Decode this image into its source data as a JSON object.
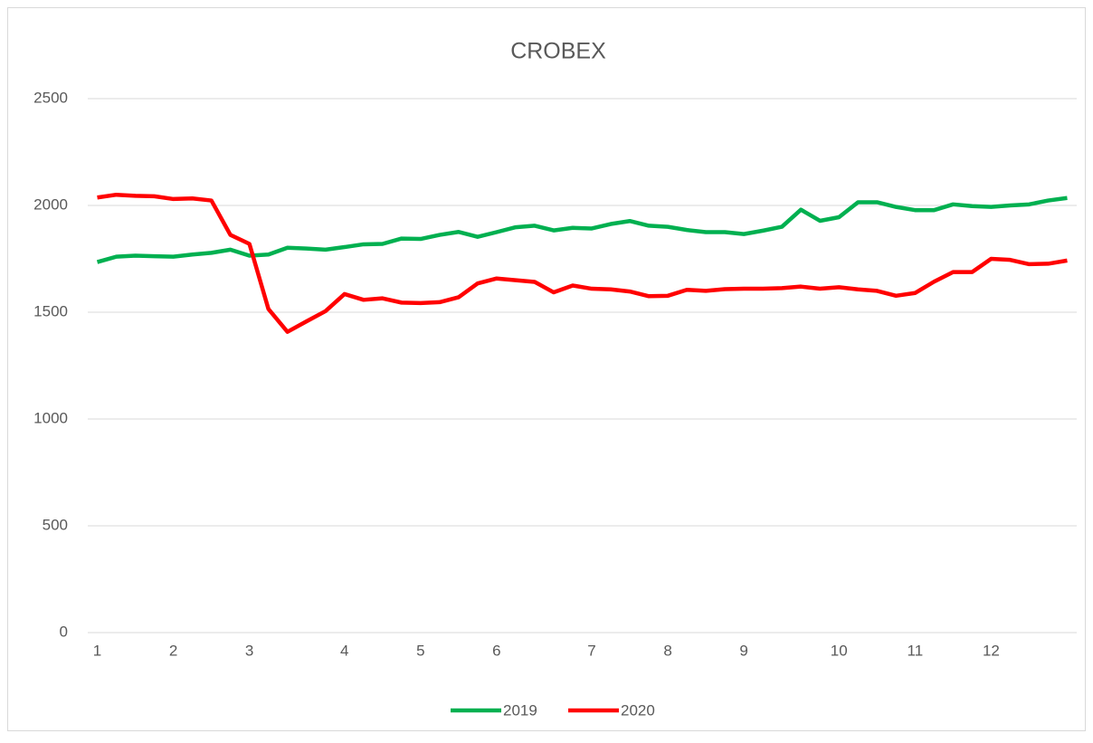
{
  "chart_data": {
    "type": "line",
    "title": "CROBEX",
    "categories": [
      "1",
      null,
      null,
      null,
      "2",
      null,
      null,
      null,
      "3",
      null,
      null,
      null,
      null,
      "4",
      null,
      null,
      null,
      "5",
      null,
      null,
      null,
      "6",
      null,
      null,
      null,
      null,
      "7",
      null,
      null,
      null,
      "8",
      null,
      null,
      null,
      "9",
      null,
      null,
      null,
      null,
      "10",
      null,
      null,
      null,
      "11",
      null,
      null,
      null,
      "12",
      null,
      null,
      null,
      null
    ],
    "series": [
      {
        "name": "2019",
        "color": "#00b050",
        "values": [
          1735,
          1760,
          1765,
          1762,
          1760,
          1770,
          1778,
          1793,
          1765,
          1770,
          1802,
          1798,
          1793,
          1805,
          1818,
          1820,
          1845,
          1843,
          1862,
          1876,
          1853,
          1875,
          1898,
          1905,
          1883,
          1895,
          1892,
          1913,
          1927,
          1905,
          1900,
          1885,
          1875,
          1875,
          1866,
          1882,
          1900,
          1980,
          1928,
          1945,
          2015,
          2015,
          1993,
          1978,
          1978,
          2005,
          1997,
          1993,
          2000,
          2005,
          2023,
          2035
        ]
      },
      {
        "name": "2020",
        "color": "#ff0000",
        "values": [
          2037,
          2050,
          2045,
          2043,
          2030,
          2033,
          2023,
          1862,
          1820,
          1515,
          1408,
          1457,
          1505,
          1585,
          1558,
          1565,
          1545,
          1543,
          1547,
          1570,
          1635,
          1658,
          1650,
          1642,
          1593,
          1625,
          1610,
          1607,
          1597,
          1575,
          1577,
          1605,
          1600,
          1608,
          1610,
          1610,
          1613,
          1620,
          1610,
          1617,
          1607,
          1600,
          1577,
          1590,
          1643,
          1688,
          1688,
          1750,
          1745,
          1725,
          1727,
          1742
        ]
      }
    ],
    "ylim": [
      0,
      2500
    ],
    "yticks": [
      0,
      500,
      1000,
      1500,
      2000,
      2500
    ],
    "grid": true,
    "legend": "bottom"
  }
}
